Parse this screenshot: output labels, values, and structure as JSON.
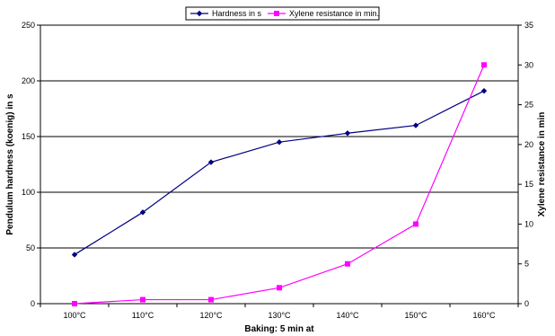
{
  "chart_data": {
    "type": "line",
    "categories": [
      "100°C",
      "110°C",
      "120°C",
      "130°C",
      "140°C",
      "150°C",
      "160°C"
    ],
    "xlabel": "Baking: 5 min at",
    "ylabel": "Pendulum hardness (koenig) in s",
    "y2label": "Xylene resistance in min",
    "ylim": [
      0,
      250
    ],
    "yticks": [
      "0",
      "50",
      "100",
      "150",
      "200",
      "250"
    ],
    "y2lim": [
      0,
      35
    ],
    "y2ticks": [
      "0",
      "5",
      "10",
      "15",
      "20",
      "25",
      "30",
      "35"
    ],
    "grid": "horizontal major gridlines on left axis",
    "legend_position": "top",
    "series": [
      {
        "name": "Hardness in s",
        "axis": "left",
        "color": "#000080",
        "marker": "diamond",
        "values": [
          44,
          82,
          127,
          145,
          153,
          160,
          191
        ]
      },
      {
        "name": "Xylene resistance in min.",
        "axis": "right",
        "color": "#FF00FF",
        "marker": "square",
        "values": [
          0,
          0.5,
          0.5,
          2,
          5,
          10,
          30
        ]
      }
    ]
  }
}
